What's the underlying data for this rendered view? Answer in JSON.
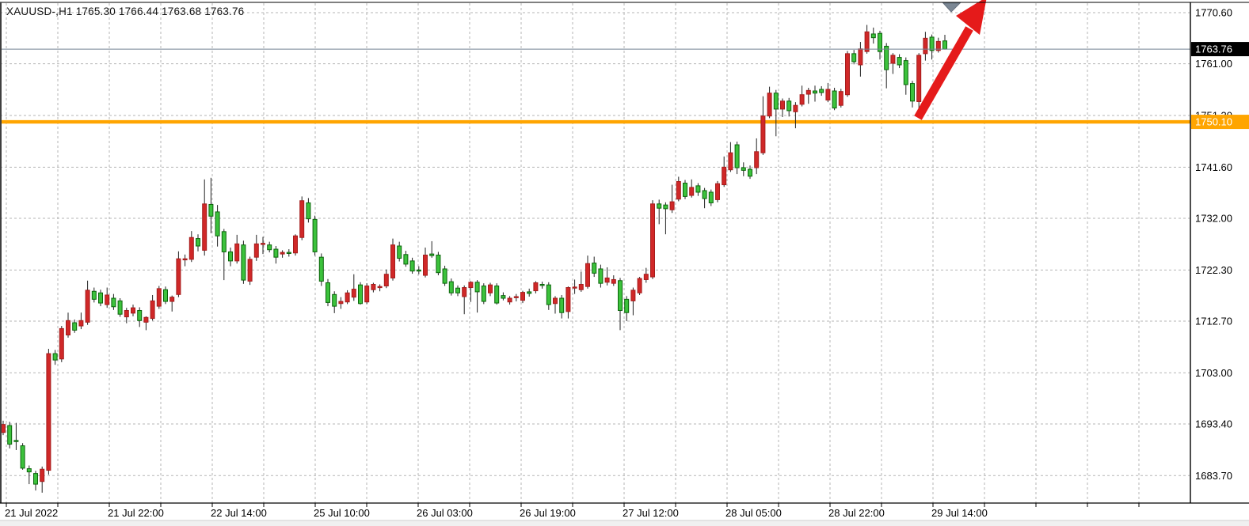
{
  "header": {
    "symbol_period": "XAUUSD-,H1",
    "open": "1765.30",
    "high": "1766.44",
    "low": "1763.68",
    "close": "1763.76"
  },
  "y_axis": {
    "labels": [
      {
        "text": "1770.60",
        "price": 1770.6
      },
      {
        "text": "1761.00",
        "price": 1761.0
      },
      {
        "text": "1751.30",
        "price": 1751.3
      },
      {
        "text": "1741.60",
        "price": 1741.6
      },
      {
        "text": "1732.00",
        "price": 1732.0
      },
      {
        "text": "1722.30",
        "price": 1722.3
      },
      {
        "text": "1712.70",
        "price": 1712.7
      },
      {
        "text": "1703.00",
        "price": 1703.0
      },
      {
        "text": "1693.40",
        "price": 1693.4
      },
      {
        "text": "1683.70",
        "price": 1683.7
      }
    ]
  },
  "x_axis": {
    "labels": [
      {
        "text": "21 Jul 2022",
        "tick_index": 0
      },
      {
        "text": "21 Jul 22:00",
        "tick_index": 2
      },
      {
        "text": "22 Jul 14:00",
        "tick_index": 4
      },
      {
        "text": "25 Jul 10:00",
        "tick_index": 6
      },
      {
        "text": "26 Jul 03:00",
        "tick_index": 8
      },
      {
        "text": "26 Jul 19:00",
        "tick_index": 10
      },
      {
        "text": "27 Jul 12:00",
        "tick_index": 12
      },
      {
        "text": "28 Jul 05:00",
        "tick_index": 14
      },
      {
        "text": "28 Jul 22:00",
        "tick_index": 16
      },
      {
        "text": "29 Jul 14:00",
        "tick_index": 18
      }
    ]
  },
  "price_marker": {
    "text": "1763.76",
    "price": 1763.76,
    "bg": "#000000",
    "fg": "#ffffff"
  },
  "horizontal_line": {
    "text": "1750.10",
    "price": 1750.1,
    "color": "#FFA500",
    "label_fg": "#ffffff"
  },
  "annotations": {
    "trend_arrow": {
      "direction": "up",
      "color": "#E51A1A"
    },
    "chart_shift_marker": {
      "color": "#7B8794"
    }
  },
  "colors": {
    "bull": "#D02828",
    "bull_border": "#A51C1C",
    "bear": "#3CC23C",
    "bear_border": "#0A640A",
    "wick": "#222222",
    "grid": "#B5B5B5",
    "price_line": "#708090",
    "axis": "#000000"
  },
  "chart_data": {
    "type": "candlestick",
    "symbol": "XAUUSD-",
    "timeframe": "H1",
    "title": "XAUUSD-,H1 1765.30 1766.44 1763.68 1763.76",
    "current_bar": {
      "open": 1765.3,
      "high": 1766.44,
      "low": 1763.68,
      "close": 1763.76
    },
    "last_price": 1763.76,
    "horizontal_line_price": 1750.1,
    "ylim": [
      1678.5,
      1772.9
    ],
    "y_ticks": [
      1770.6,
      1761.0,
      1751.3,
      1741.6,
      1732.0,
      1722.3,
      1712.7,
      1703.0,
      1693.4,
      1683.7
    ],
    "x_tick_labels": [
      "21 Jul 2022",
      "21 Jul 22:00",
      "22 Jul 14:00",
      "25 Jul 10:00",
      "26 Jul 03:00",
      "26 Jul 19:00",
      "27 Jul 12:00",
      "28 Jul 05:00",
      "28 Jul 22:00",
      "29 Jul 14:00"
    ],
    "color_convention": "red candles = bullish (close>open), green candles = bearish",
    "legend_position": "none",
    "grid": true,
    "ohlc": [
      [
        1691.8,
        1694.0,
        1691.3,
        1693.3
      ],
      [
        1693.1,
        1693.8,
        1688.8,
        1689.6
      ],
      [
        1690.3,
        1693.6,
        1688.5,
        1690.2
      ],
      [
        1689.3,
        1689.8,
        1684.8,
        1685.1
      ],
      [
        1685.0,
        1685.6,
        1682.1,
        1684.4
      ],
      [
        1684.1,
        1684.6,
        1680.9,
        1682.1
      ],
      [
        1682.6,
        1685.4,
        1680.5,
        1684.9
      ],
      [
        1684.7,
        1707.5,
        1683.9,
        1706.6
      ],
      [
        1706.6,
        1707.3,
        1704.5,
        1705.4
      ],
      [
        1705.6,
        1711.8,
        1705.0,
        1711.3
      ],
      [
        1710.1,
        1714.3,
        1709.6,
        1712.8
      ],
      [
        1712.4,
        1713.0,
        1710.5,
        1711.0
      ],
      [
        1711.8,
        1714.3,
        1711.2,
        1712.8
      ],
      [
        1712.5,
        1720.3,
        1712.0,
        1718.5
      ],
      [
        1718.3,
        1719.0,
        1716.2,
        1716.8
      ],
      [
        1718.0,
        1718.6,
        1715.5,
        1716.1
      ],
      [
        1715.8,
        1719.0,
        1715.2,
        1717.6
      ],
      [
        1717.0,
        1717.8,
        1714.8,
        1715.4
      ],
      [
        1716.5,
        1717.0,
        1713.5,
        1714.0
      ],
      [
        1713.5,
        1715.2,
        1712.3,
        1714.7
      ],
      [
        1714.2,
        1715.8,
        1713.6,
        1715.2
      ],
      [
        1714.7,
        1715.3,
        1711.6,
        1712.8
      ],
      [
        1712.5,
        1713.6,
        1711.0,
        1713.4
      ],
      [
        1713.2,
        1717.6,
        1712.8,
        1716.5
      ],
      [
        1715.5,
        1719.3,
        1715.0,
        1718.8
      ],
      [
        1718.6,
        1719.2,
        1715.9,
        1716.4
      ],
      [
        1716.4,
        1717.5,
        1714.5,
        1717.2
      ],
      [
        1717.7,
        1725.8,
        1717.2,
        1724.4
      ],
      [
        1724.3,
        1725.2,
        1723.0,
        1724.4
      ],
      [
        1724.3,
        1729.6,
        1723.8,
        1728.4
      ],
      [
        1728.2,
        1729.0,
        1725.8,
        1726.8
      ],
      [
        1726.0,
        1739.3,
        1725.0,
        1734.7
      ],
      [
        1734.6,
        1739.6,
        1729.2,
        1732.4
      ],
      [
        1733.2,
        1734.5,
        1726.7,
        1728.7
      ],
      [
        1729.5,
        1730.0,
        1720.4,
        1725.7
      ],
      [
        1725.7,
        1726.5,
        1723.0,
        1724.0
      ],
      [
        1724.0,
        1728.9,
        1723.5,
        1727.2
      ],
      [
        1727.0,
        1727.8,
        1719.7,
        1720.4
      ],
      [
        1720.2,
        1724.8,
        1719.5,
        1724.3
      ],
      [
        1724.7,
        1728.9,
        1724.0,
        1727.2
      ],
      [
        1727.2,
        1728.5,
        1725.3,
        1727.3
      ],
      [
        1727.0,
        1727.6,
        1725.6,
        1726.1
      ],
      [
        1726.2,
        1726.8,
        1723.5,
        1724.7
      ],
      [
        1725.3,
        1726.0,
        1724.6,
        1725.6
      ],
      [
        1725.6,
        1726.2,
        1724.8,
        1725.5
      ],
      [
        1725.5,
        1729.0,
        1725.0,
        1728.7
      ],
      [
        1728.4,
        1736.1,
        1727.9,
        1735.3
      ],
      [
        1734.9,
        1735.8,
        1731.2,
        1731.9
      ],
      [
        1731.8,
        1732.5,
        1725.0,
        1725.7
      ],
      [
        1724.7,
        1725.4,
        1719.3,
        1720.2
      ],
      [
        1719.9,
        1720.6,
        1715.5,
        1716.2
      ],
      [
        1717.7,
        1718.3,
        1714.2,
        1715.5
      ],
      [
        1716.0,
        1717.2,
        1715.0,
        1716.4
      ],
      [
        1716.3,
        1718.5,
        1715.9,
        1718.0
      ],
      [
        1717.2,
        1721.5,
        1716.5,
        1718.7
      ],
      [
        1719.5,
        1720.0,
        1715.8,
        1716.0
      ],
      [
        1716.3,
        1719.8,
        1715.9,
        1719.3
      ],
      [
        1718.6,
        1719.9,
        1718.1,
        1719.6
      ],
      [
        1719.0,
        1719.6,
        1718.3,
        1719.2
      ],
      [
        1719.3,
        1722.4,
        1718.9,
        1721.5
      ],
      [
        1720.8,
        1728.2,
        1720.3,
        1727.0
      ],
      [
        1726.8,
        1727.6,
        1723.9,
        1724.5
      ],
      [
        1725.2,
        1725.9,
        1722.9,
        1723.4
      ],
      [
        1724.0,
        1724.6,
        1721.6,
        1722.1
      ],
      [
        1722.3,
        1723.0,
        1721.5,
        1722.2
      ],
      [
        1721.3,
        1726.5,
        1720.9,
        1725.1
      ],
      [
        1725.3,
        1727.7,
        1724.6,
        1725.0
      ],
      [
        1725.1,
        1725.7,
        1721.3,
        1721.8
      ],
      [
        1722.5,
        1723.1,
        1719.3,
        1719.8
      ],
      [
        1720.1,
        1720.7,
        1717.5,
        1718.0
      ],
      [
        1718.9,
        1719.4,
        1717.4,
        1718.0
      ],
      [
        1717.3,
        1719.4,
        1714.0,
        1719.0
      ],
      [
        1719.0,
        1720.2,
        1716.3,
        1720.0
      ],
      [
        1720.0,
        1720.4,
        1714.3,
        1718.2
      ],
      [
        1719.3,
        1719.8,
        1715.9,
        1716.4
      ],
      [
        1718.0,
        1719.9,
        1717.4,
        1719.5
      ],
      [
        1719.3,
        1719.8,
        1715.8,
        1716.1
      ],
      [
        1717.5,
        1718.1,
        1716.6,
        1717.0
      ],
      [
        1716.3,
        1717.4,
        1715.8,
        1717.0
      ],
      [
        1717.2,
        1717.8,
        1716.4,
        1717.3
      ],
      [
        1716.6,
        1718.4,
        1716.1,
        1718.1
      ],
      [
        1718.2,
        1718.8,
        1717.3,
        1717.9
      ],
      [
        1718.4,
        1720.2,
        1717.9,
        1719.9
      ],
      [
        1719.6,
        1720.1,
        1718.8,
        1719.4
      ],
      [
        1719.5,
        1720.0,
        1714.8,
        1715.8
      ],
      [
        1716.0,
        1717.4,
        1714.1,
        1717.0
      ],
      [
        1717.0,
        1717.6,
        1713.2,
        1714.3
      ],
      [
        1714.5,
        1719.2,
        1713.2,
        1719.0
      ],
      [
        1719.0,
        1720.5,
        1717.8,
        1719.1
      ],
      [
        1718.6,
        1722.0,
        1718.2,
        1719.6
      ],
      [
        1719.2,
        1725.0,
        1718.8,
        1723.5
      ],
      [
        1723.6,
        1724.8,
        1721.0,
        1721.7
      ],
      [
        1722.5,
        1723.3,
        1719.0,
        1719.8
      ],
      [
        1720.0,
        1722.8,
        1719.4,
        1720.8
      ],
      [
        1719.8,
        1721.3,
        1719.3,
        1720.5
      ],
      [
        1720.3,
        1720.8,
        1711.0,
        1714.7
      ],
      [
        1716.8,
        1717.4,
        1712.7,
        1714.3
      ],
      [
        1716.5,
        1719.0,
        1713.8,
        1718.5
      ],
      [
        1718.0,
        1721.0,
        1717.6,
        1720.7
      ],
      [
        1720.5,
        1722.7,
        1719.9,
        1721.5
      ],
      [
        1721.0,
        1735.4,
        1720.6,
        1734.7
      ],
      [
        1734.7,
        1735.5,
        1730.9,
        1733.9
      ],
      [
        1734.5,
        1735.0,
        1729.0,
        1733.8
      ],
      [
        1733.6,
        1738.3,
        1733.0,
        1735.1
      ],
      [
        1735.6,
        1739.8,
        1735.2,
        1738.9
      ],
      [
        1738.6,
        1739.2,
        1735.6,
        1736.1
      ],
      [
        1736.3,
        1739.3,
        1735.9,
        1737.8
      ],
      [
        1738.1,
        1738.6,
        1736.2,
        1736.9
      ],
      [
        1737.2,
        1737.7,
        1733.9,
        1735.7
      ],
      [
        1736.9,
        1737.4,
        1734.3,
        1734.9
      ],
      [
        1735.5,
        1739.0,
        1735.0,
        1738.5
      ],
      [
        1738.3,
        1743.6,
        1737.9,
        1741.6
      ],
      [
        1741.1,
        1746.3,
        1740.7,
        1744.3
      ],
      [
        1745.8,
        1746.4,
        1740.3,
        1741.5
      ],
      [
        1741.5,
        1742.5,
        1739.9,
        1741.0
      ],
      [
        1741.2,
        1741.9,
        1739.4,
        1739.9
      ],
      [
        1741.5,
        1747.0,
        1740.3,
        1744.5
      ],
      [
        1744.3,
        1754.9,
        1743.9,
        1751.2
      ],
      [
        1751.2,
        1756.7,
        1750.8,
        1755.5
      ],
      [
        1755.5,
        1756.1,
        1747.4,
        1752.5
      ],
      [
        1752.5,
        1754.5,
        1751.0,
        1754.0
      ],
      [
        1754.0,
        1754.6,
        1751.1,
        1752.2
      ],
      [
        1752.0,
        1753.8,
        1748.9,
        1753.2
      ],
      [
        1753.4,
        1756.9,
        1753.0,
        1755.2
      ],
      [
        1755.3,
        1756.5,
        1753.5,
        1756.0
      ],
      [
        1755.9,
        1756.9,
        1753.9,
        1755.5
      ],
      [
        1756.2,
        1756.8,
        1755.0,
        1755.6
      ],
      [
        1754.2,
        1757.4,
        1753.8,
        1756.2
      ],
      [
        1755.9,
        1756.5,
        1752.3,
        1752.7
      ],
      [
        1753.2,
        1756.3,
        1752.8,
        1755.8
      ],
      [
        1755.2,
        1763.4,
        1754.8,
        1762.9
      ],
      [
        1762.9,
        1763.6,
        1760.9,
        1761.4
      ],
      [
        1760.8,
        1765.1,
        1758.6,
        1763.8
      ],
      [
        1763.3,
        1768.3,
        1762.9,
        1767.0
      ],
      [
        1766.6,
        1767.8,
        1764.8,
        1765.9
      ],
      [
        1766.7,
        1767.2,
        1761.8,
        1763.3
      ],
      [
        1764.3,
        1764.9,
        1756.4,
        1759.9
      ],
      [
        1761.1,
        1763.0,
        1759.1,
        1762.6
      ],
      [
        1762.2,
        1762.8,
        1760.2,
        1760.8
      ],
      [
        1761.6,
        1762.2,
        1755.2,
        1757.1
      ],
      [
        1757.3,
        1757.8,
        1752.8,
        1754.0
      ],
      [
        1753.9,
        1763.0,
        1752.4,
        1762.6
      ],
      [
        1762.9,
        1767.0,
        1761.6,
        1765.8
      ],
      [
        1766.0,
        1766.5,
        1761.8,
        1763.5
      ],
      [
        1763.5,
        1765.9,
        1763.1,
        1765.2
      ],
      [
        1765.3,
        1766.44,
        1763.68,
        1763.76
      ]
    ]
  }
}
